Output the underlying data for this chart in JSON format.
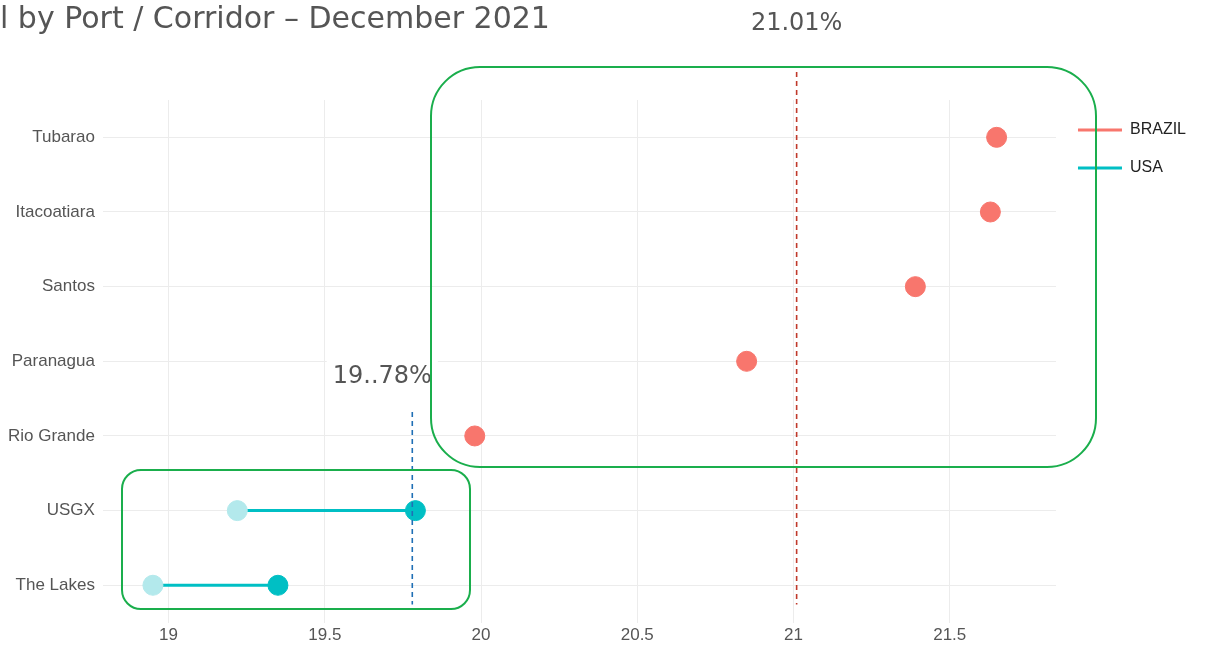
{
  "chart_data": {
    "type": "scatter",
    "title": "l by Port / Corridor – December 2021",
    "orientation": "horizontal",
    "categories": [
      "Tubarao",
      "Itacoatiara",
      "Santos",
      "Paranagua",
      "Rio Grande",
      "USGX",
      "The Lakes"
    ],
    "series": [
      {
        "name": "BRAZIL",
        "color": "#f8766d",
        "values": [
          21.65,
          21.63,
          21.39,
          20.85,
          19.98,
          null,
          null
        ]
      },
      {
        "color": "#b3e9ec",
        "values": [
          null,
          null,
          null,
          null,
          null,
          19.22,
          18.95
        ]
      },
      {
        "name": "USA",
        "color": "#00bfc4",
        "values": [
          null,
          null,
          null,
          null,
          null,
          19.79,
          19.35
        ]
      }
    ],
    "xlim": [
      18.79,
      21.84
    ],
    "xticks": [
      19,
      19.5,
      20,
      20.5,
      21,
      21.5
    ],
    "ref_lines": [
      {
        "axis": "x",
        "value": 21.01,
        "label": "21.01%",
        "color": "#c0392b",
        "line_style": "dashed"
      },
      {
        "axis": "x",
        "value": 19.78,
        "label": "19..78%",
        "color": "#1f6fb5",
        "line_style": "dashed"
      }
    ],
    "grid": true,
    "legend": "top right",
    "marker": "circle"
  }
}
